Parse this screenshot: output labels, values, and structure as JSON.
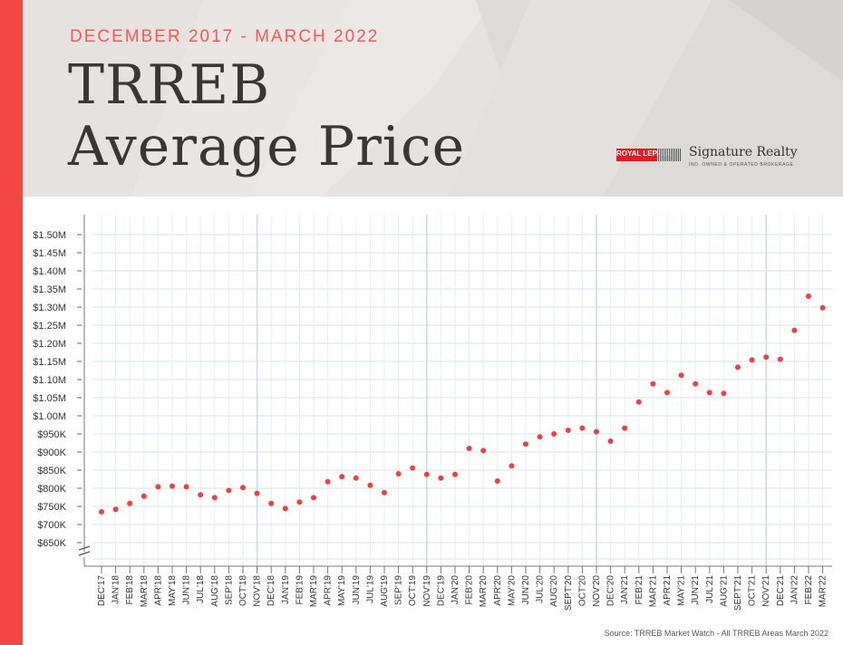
{
  "header": {
    "kicker": "DECEMBER 2017 - MARCH 2022",
    "title_line1": "TRREB",
    "title_line2": "Average Price"
  },
  "logo": {
    "box_text": "ROYAL LEPAGE",
    "name": "Signature Realty",
    "tagline": "IND. OWNED & OPERATED BROKERAGE"
  },
  "source": "Source: TRREB Market Watch - All TRREB Areas March 2022",
  "colors": {
    "accent": "#f34745",
    "point": "#f0403d",
    "grid": "#d6e4ee",
    "grid_major": "#c4dbea",
    "header_bg": "#e6e2e0"
  },
  "chart_data": {
    "type": "scatter",
    "title": "",
    "xlabel": "",
    "ylabel": "",
    "categories": [
      "DEC'17",
      "JAN'18",
      "FEB'18",
      "MAR'18",
      "APR'18",
      "MAY'18",
      "JUN'18",
      "JUL'18",
      "AUG'18",
      "SEP'18",
      "OCT'18",
      "NOV'18",
      "DEC'18",
      "JAN'19",
      "FEB'19",
      "MAR'19",
      "APR'19",
      "MAY'19",
      "JUN'19",
      "JUL'19",
      "AUG'19",
      "SEP'19",
      "OCT'19",
      "NOV'19",
      "DEC'19",
      "JAN'20",
      "FEB'20",
      "MAR'20",
      "APR'20",
      "MAY'20",
      "JUN'20",
      "JUL'20",
      "AUG'20",
      "SEPT'20",
      "OCT'20",
      "NOV'20",
      "DEC'20",
      "JAN'21",
      "FEB'21",
      "MAR'21",
      "APR'21",
      "MAY'21",
      "JUN'21",
      "JUL'21",
      "AUG'21",
      "SEPT'21",
      "OCT'21",
      "NOV'21",
      "DEC'21",
      "JAN'22",
      "FEB'22",
      "MAR'22"
    ],
    "values": [
      735,
      742,
      758,
      778,
      804,
      806,
      804,
      782,
      774,
      794,
      802,
      786,
      758,
      744,
      762,
      774,
      818,
      832,
      828,
      808,
      788,
      840,
      856,
      838,
      828,
      838,
      910,
      904,
      820,
      862,
      922,
      942,
      950,
      960,
      966,
      956,
      930,
      966,
      1038,
      1088,
      1064,
      1112,
      1088,
      1064,
      1062,
      1134,
      1154,
      1162,
      1156,
      1236,
      1330,
      1298
    ],
    "unit": "thousands CAD",
    "y_ticks": [
      "$650K",
      "$700K",
      "$750K",
      "$800K",
      "$850K",
      "$900K",
      "$950K",
      "$1.00M",
      "$1.05M",
      "$1.10M",
      "$1.15M",
      "$1.20M",
      "$1.25M",
      "$1.30M",
      "$1.35M",
      "$1.40M",
      "$1.45M",
      "$1.50M"
    ],
    "ylim": [
      650,
      1500
    ],
    "axis_break": true,
    "grid": true,
    "legend": "none"
  }
}
